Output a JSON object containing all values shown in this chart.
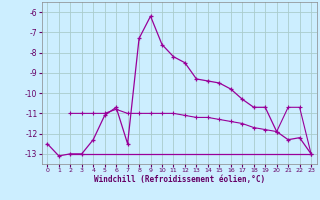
{
  "xlabel": "Windchill (Refroidissement éolien,°C)",
  "bg_color": "#cceeff",
  "grid_color": "#aacccc",
  "line_color": "#990099",
  "line1_x": [
    0,
    1,
    2,
    3,
    4,
    5,
    6,
    7,
    8,
    9,
    10,
    11,
    12,
    13,
    14,
    15,
    16,
    17,
    18,
    19,
    20,
    21,
    22,
    23
  ],
  "line1_y": [
    -12.5,
    -13.1,
    -13.0,
    -13.0,
    -12.3,
    -11.1,
    -10.7,
    -12.5,
    -7.3,
    -6.2,
    -7.6,
    -8.2,
    -8.5,
    -9.3,
    -9.4,
    -9.5,
    -9.8,
    -10.3,
    -10.7,
    -10.7,
    -11.9,
    -12.3,
    -12.2,
    -13.0
  ],
  "line2_x": [
    2,
    3,
    4,
    5,
    6,
    7,
    8,
    9,
    10,
    11,
    12,
    13,
    14,
    15,
    16,
    17,
    18,
    19,
    20,
    21,
    22,
    23
  ],
  "line2_y": [
    -11.0,
    -11.0,
    -11.0,
    -11.0,
    -10.8,
    -11.0,
    -11.0,
    -11.0,
    -11.0,
    -11.0,
    -11.1,
    -11.2,
    -11.2,
    -11.3,
    -11.4,
    -11.5,
    -11.7,
    -11.8,
    -11.9,
    -10.7,
    -10.7,
    -13.0
  ],
  "line3_x": [
    2,
    3,
    23
  ],
  "line3_y": [
    -13.0,
    -13.0,
    -13.0
  ],
  "ylim": [
    -13.5,
    -5.5
  ],
  "xlim": [
    -0.5,
    23.5
  ],
  "yticks": [
    -13,
    -12,
    -11,
    -10,
    -9,
    -8,
    -7,
    -6
  ],
  "xticks": [
    0,
    1,
    2,
    3,
    4,
    5,
    6,
    7,
    8,
    9,
    10,
    11,
    12,
    13,
    14,
    15,
    16,
    17,
    18,
    19,
    20,
    21,
    22,
    23
  ]
}
